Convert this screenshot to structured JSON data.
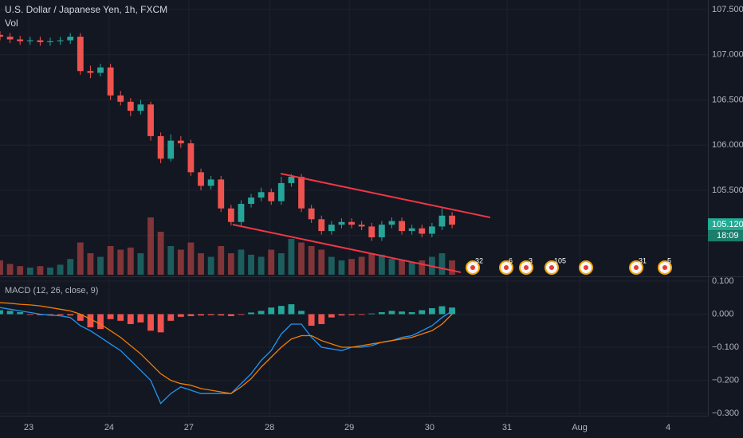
{
  "header": {
    "title": "U.S. Dollar / Japanese Yen, 1h, FXCM"
  },
  "chart_data": [
    {
      "type": "candlestick",
      "volume_title": "Vol",
      "x": [
        0,
        3,
        6,
        9,
        12,
        15,
        18,
        21,
        24,
        27,
        30,
        33,
        36,
        39,
        42,
        45,
        48,
        51,
        54,
        57,
        60,
        63,
        66,
        69,
        72,
        75,
        78,
        81,
        84,
        87,
        90,
        93,
        96,
        99,
        102,
        105,
        108,
        111,
        114,
        117,
        120,
        123,
        126,
        129,
        132,
        135
      ],
      "ohlc": [
        [
          107.22,
          107.26,
          107.16,
          107.2
        ],
        [
          107.2,
          107.24,
          107.13,
          107.17
        ],
        [
          107.17,
          107.21,
          107.11,
          107.15
        ],
        [
          107.15,
          107.2,
          107.11,
          107.16
        ],
        [
          107.16,
          107.2,
          107.1,
          107.14
        ],
        [
          107.14,
          107.19,
          107.1,
          107.15
        ],
        [
          107.15,
          107.2,
          107.11,
          107.16
        ],
        [
          107.16,
          107.24,
          107.12,
          107.2
        ],
        [
          107.2,
          107.24,
          106.78,
          106.82
        ],
        [
          106.82,
          106.88,
          106.74,
          106.8
        ],
        [
          106.8,
          106.9,
          106.76,
          106.86
        ],
        [
          106.86,
          106.9,
          106.5,
          106.55
        ],
        [
          106.55,
          106.6,
          106.44,
          106.48
        ],
        [
          106.48,
          106.52,
          106.32,
          106.38
        ],
        [
          106.38,
          106.5,
          106.34,
          106.45
        ],
        [
          106.45,
          106.48,
          106.05,
          106.1
        ],
        [
          106.1,
          106.14,
          105.8,
          105.85
        ],
        [
          105.85,
          106.12,
          105.82,
          106.05
        ],
        [
          106.05,
          106.1,
          105.97,
          106.02
        ],
        [
          106.02,
          106.06,
          105.66,
          105.7
        ],
        [
          105.7,
          105.74,
          105.5,
          105.55
        ],
        [
          105.55,
          105.66,
          105.51,
          105.62
        ],
        [
          105.62,
          105.66,
          105.26,
          105.3
        ],
        [
          105.3,
          105.34,
          105.11,
          105.15
        ],
        [
          105.15,
          105.39,
          105.11,
          105.35
        ],
        [
          105.35,
          105.46,
          105.31,
          105.42
        ],
        [
          105.42,
          105.53,
          105.38,
          105.48
        ],
        [
          105.48,
          105.52,
          105.34,
          105.38
        ],
        [
          105.38,
          105.65,
          105.34,
          105.58
        ],
        [
          105.58,
          105.68,
          105.54,
          105.65
        ],
        [
          105.65,
          105.68,
          105.26,
          105.3
        ],
        [
          105.3,
          105.34,
          105.14,
          105.18
        ],
        [
          105.18,
          105.22,
          105.01,
          105.05
        ],
        [
          105.05,
          105.16,
          105.01,
          105.12
        ],
        [
          105.12,
          105.19,
          105.08,
          105.15
        ],
        [
          105.15,
          105.19,
          105.08,
          105.12
        ],
        [
          105.12,
          105.16,
          105.06,
          105.1
        ],
        [
          105.1,
          105.14,
          104.94,
          104.98
        ],
        [
          104.98,
          105.16,
          104.94,
          105.12
        ],
        [
          105.12,
          105.2,
          105.08,
          105.16
        ],
        [
          105.16,
          105.2,
          105.01,
          105.05
        ],
        [
          105.05,
          105.12,
          105.01,
          105.08
        ],
        [
          105.08,
          105.12,
          104.98,
          105.02
        ],
        [
          105.02,
          105.14,
          104.98,
          105.1
        ],
        [
          105.1,
          105.3,
          105.06,
          105.22
        ],
        [
          105.22,
          105.26,
          105.08,
          105.12
        ]
      ],
      "volume": [
        20,
        15,
        12,
        10,
        12,
        10,
        14,
        22,
        45,
        30,
        25,
        40,
        35,
        38,
        30,
        80,
        60,
        40,
        35,
        45,
        30,
        25,
        40,
        30,
        35,
        28,
        25,
        35,
        30,
        50,
        45,
        40,
        35,
        25,
        20,
        22,
        25,
        30,
        28,
        22,
        20,
        18,
        20,
        25,
        30,
        20
      ],
      "volume_lim": [
        0,
        100
      ],
      "up_color": "#26a69a",
      "down_color": "#ef5350",
      "xlim": [
        0,
        211.4
      ],
      "xticks": [
        {
          "value": 8.57,
          "label": "23"
        },
        {
          "value": 32.6,
          "label": "24"
        },
        {
          "value": 56.4,
          "label": "27"
        },
        {
          "value": 80.5,
          "label": "28"
        },
        {
          "value": 104.3,
          "label": "29"
        },
        {
          "value": 128.3,
          "label": "30"
        },
        {
          "value": 151.4,
          "label": "31"
        },
        {
          "value": 173.1,
          "label": "Aug"
        },
        {
          "value": 199.5,
          "label": "4"
        }
      ],
      "ylim": [
        104.566,
        107.606
      ],
      "yticks": [
        {
          "value": 107.5,
          "label": "107.500"
        },
        {
          "value": 107,
          "label": "107.000"
        },
        {
          "value": 106.5,
          "label": "106.500"
        },
        {
          "value": 106,
          "label": "106.000"
        },
        {
          "value": 105.5,
          "label": "105.500"
        },
        {
          "value": 105,
          "label": "105.000"
        }
      ],
      "grid": true,
      "trendlines": [
        {
          "color": "#f23645",
          "x": [
            83.8,
            146.4
          ],
          "y": [
            105.685,
            105.2
          ]
        },
        {
          "color": "#f23645",
          "x": [
            69.5,
            137.6
          ],
          "y": [
            105.121,
            104.593
          ]
        }
      ],
      "last_price": {
        "value": 105.12,
        "label": "105.120"
      },
      "countdown": "18:09"
    },
    {
      "type": "macd",
      "title": "MACD (12, 26, close, 9)",
      "x": [
        0,
        3,
        6,
        9,
        12,
        15,
        18,
        21,
        24,
        27,
        30,
        33,
        36,
        39,
        42,
        45,
        48,
        51,
        54,
        57,
        60,
        63,
        66,
        69,
        72,
        75,
        78,
        81,
        84,
        87,
        90,
        93,
        96,
        99,
        102,
        105,
        108,
        111,
        114,
        117,
        120,
        123,
        126,
        129,
        132,
        135
      ],
      "xlim": [
        0,
        211.4
      ],
      "ylim": [
        -0.307,
        0.112
      ],
      "yticks": [
        {
          "value": 0.1,
          "label": "0.100"
        },
        {
          "value": 0,
          "label": "0.000"
        },
        {
          "value": -0.1,
          "label": "−0.100"
        },
        {
          "value": -0.2,
          "label": "−0.200"
        },
        {
          "value": -0.3,
          "label": "−0.300"
        }
      ],
      "histogram": {
        "up_color": "#26a69a",
        "down_color": "#ef5350",
        "values": [
          0.012,
          0.01,
          0.006,
          -0.002,
          -0.003,
          -0.004,
          -0.003,
          -0.004,
          -0.02,
          -0.04,
          -0.045,
          -0.015,
          -0.02,
          -0.03,
          -0.025,
          -0.05,
          -0.055,
          -0.02,
          -0.008,
          -0.006,
          -0.004,
          -0.003,
          -0.004,
          -0.006,
          -0.002,
          0.005,
          0.01,
          0.02,
          0.025,
          0.03,
          0.01,
          -0.035,
          -0.03,
          -0.01,
          -0.004,
          -0.003,
          -0.002,
          0.002,
          0.006,
          0.01,
          0.008,
          0.006,
          0.012,
          0.018,
          0.024,
          0.02
        ]
      },
      "series": [
        {
          "color": "#2196f3",
          "values": [
            0.02,
            0.015,
            0.01,
            0.005,
            0,
            -0.003,
            -0.005,
            -0.01,
            -0.035,
            -0.05,
            -0.07,
            -0.09,
            -0.11,
            -0.14,
            -0.17,
            -0.2,
            -0.27,
            -0.24,
            -0.22,
            -0.23,
            -0.24,
            -0.24,
            -0.24,
            -0.24,
            -0.21,
            -0.18,
            -0.14,
            -0.11,
            -0.06,
            -0.03,
            -0.03,
            -0.07,
            -0.1,
            -0.105,
            -0.11,
            -0.1,
            -0.1,
            -0.095,
            -0.085,
            -0.08,
            -0.07,
            -0.065,
            -0.05,
            -0.035,
            -0.01,
            0.01
          ]
        },
        {
          "color": "#f57c00",
          "values": [
            0.035,
            0.033,
            0.03,
            0.028,
            0.025,
            0.02,
            0.015,
            0.01,
            0,
            -0.015,
            -0.03,
            -0.05,
            -0.07,
            -0.095,
            -0.12,
            -0.15,
            -0.18,
            -0.2,
            -0.21,
            -0.215,
            -0.225,
            -0.23,
            -0.235,
            -0.24,
            -0.22,
            -0.195,
            -0.16,
            -0.13,
            -0.1,
            -0.075,
            -0.065,
            -0.065,
            -0.08,
            -0.09,
            -0.1,
            -0.1,
            -0.095,
            -0.09,
            -0.085,
            -0.08,
            -0.075,
            -0.07,
            -0.06,
            -0.05,
            -0.03,
            0
          ]
        }
      ]
    }
  ],
  "events": [
    "32",
    "6",
    "3",
    "105",
    "31",
    "5"
  ]
}
